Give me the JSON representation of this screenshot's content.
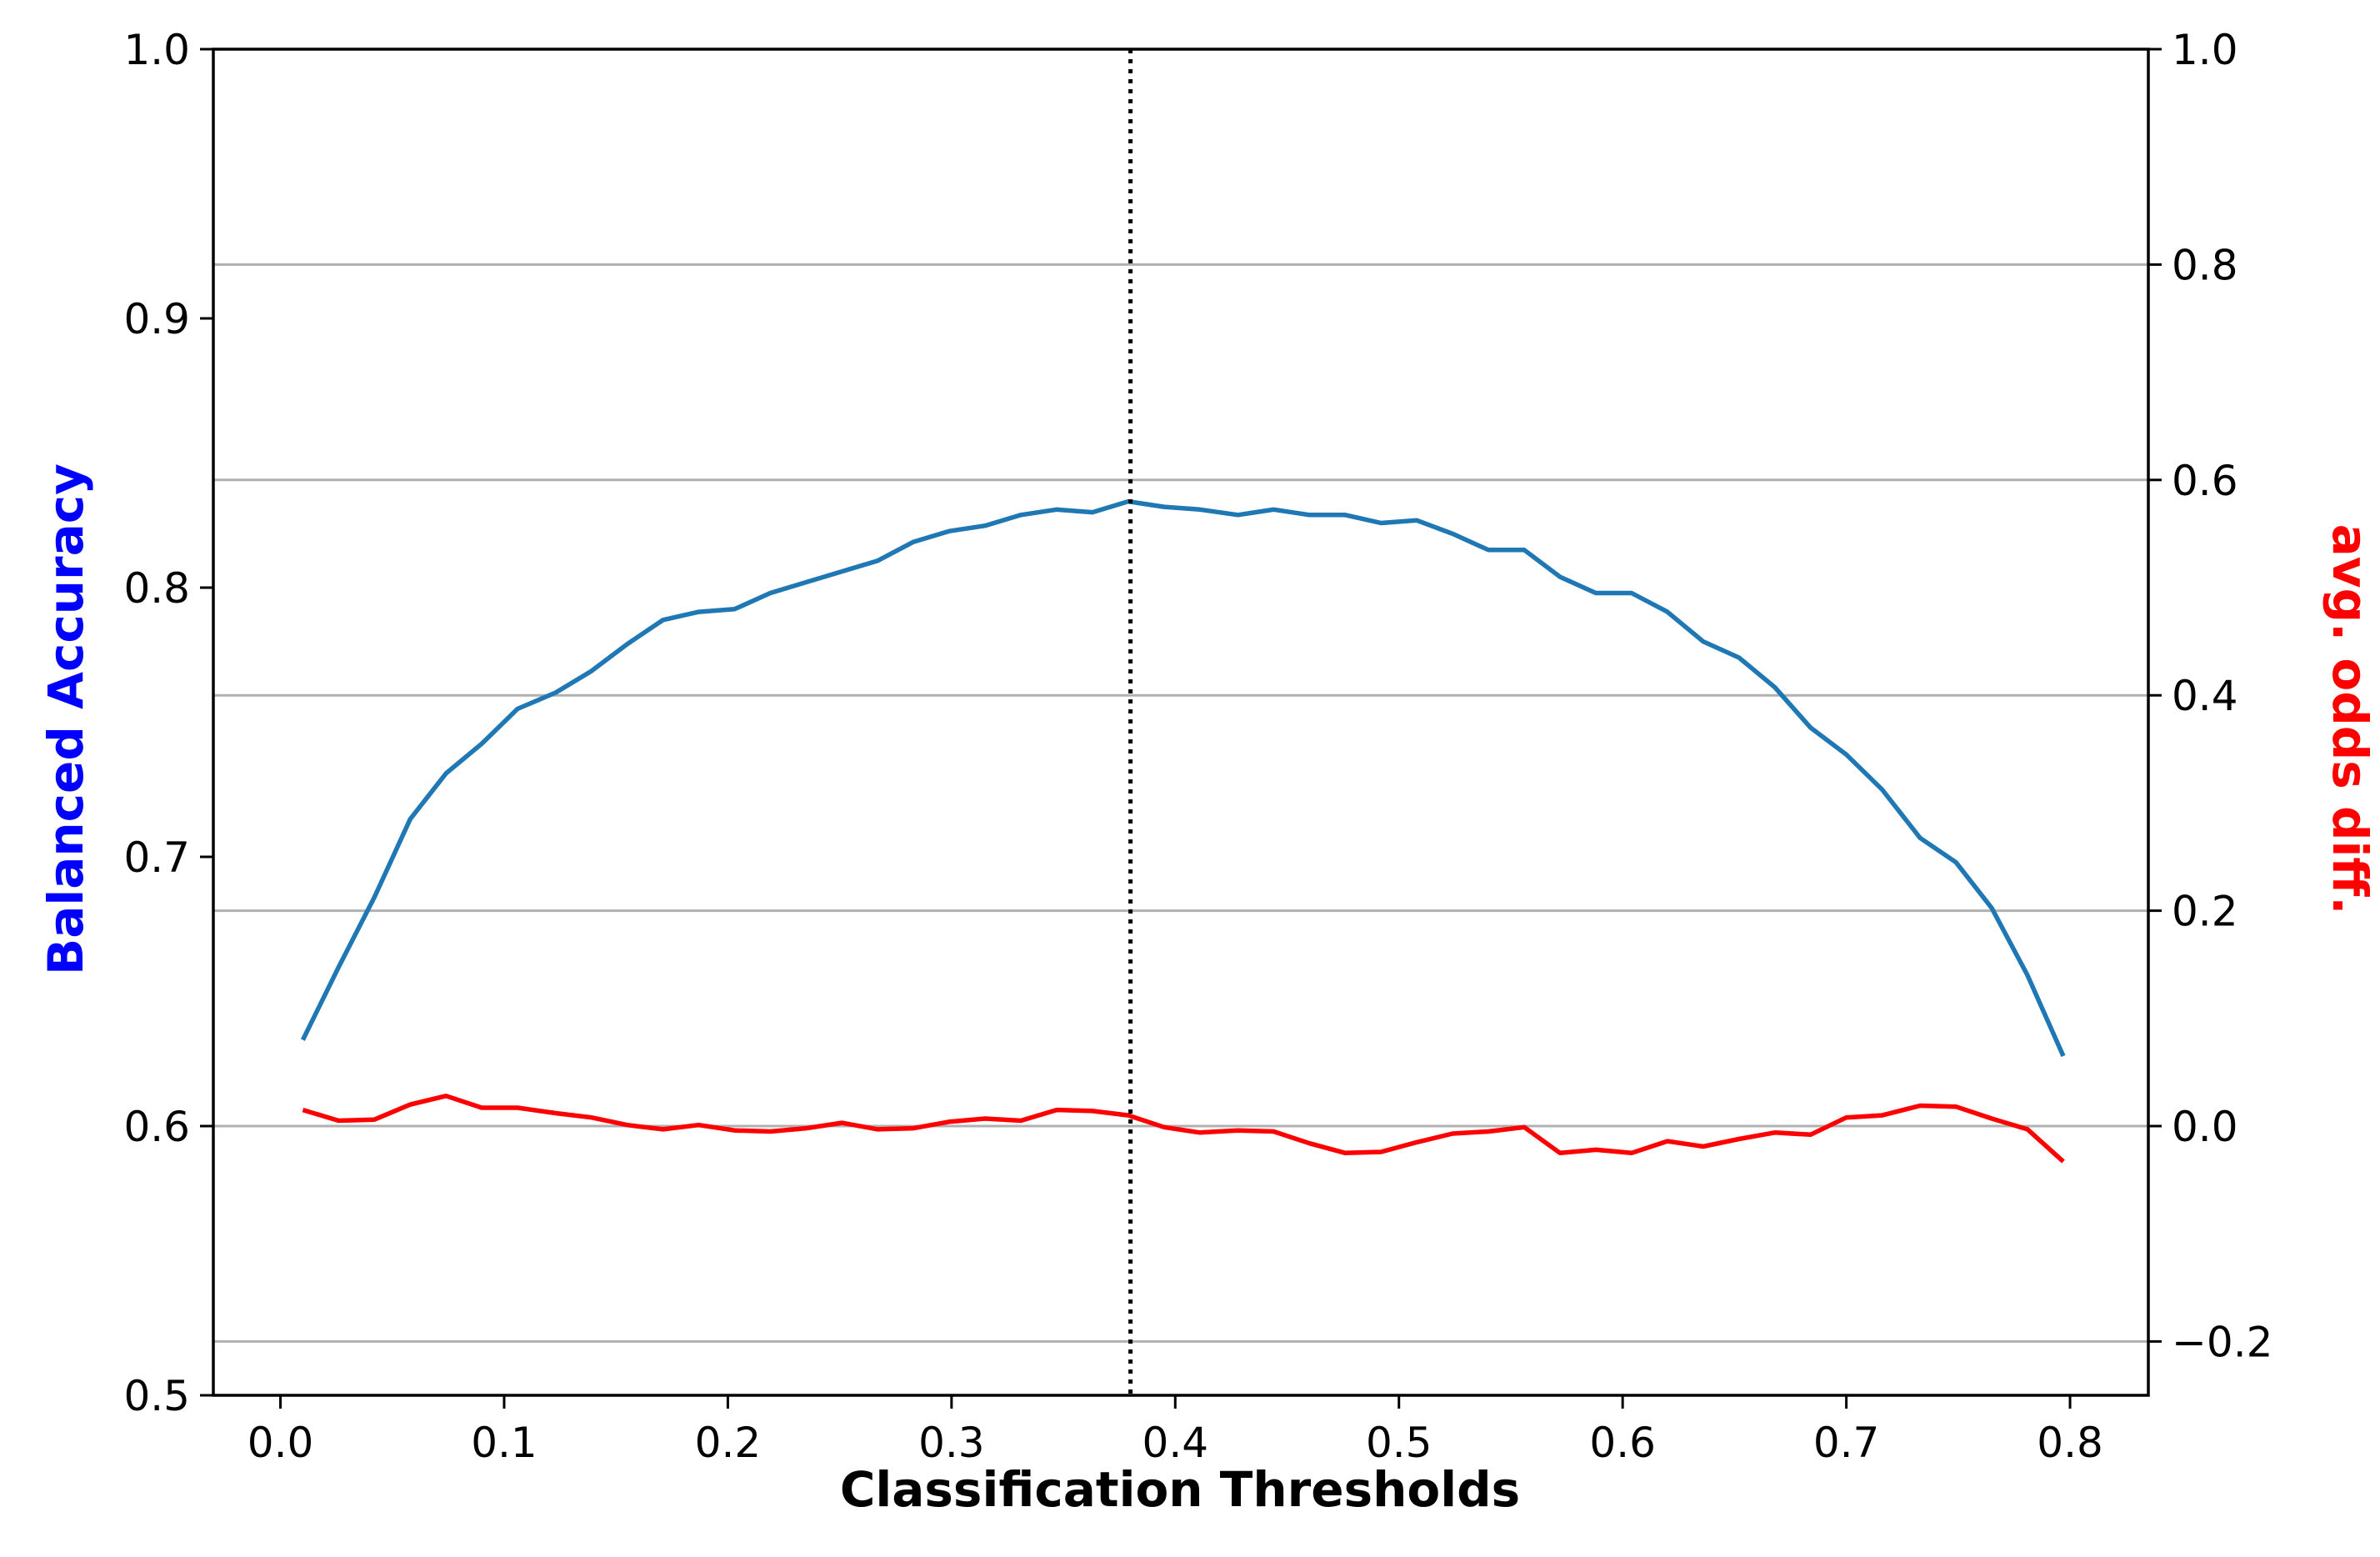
{
  "chart_data": {
    "type": "line",
    "xlabel": "Classification Thresholds",
    "ylabel_left": "Balanced Accuracy",
    "ylabel_right": "avg. odds diff.",
    "colors": {
      "left_label": "#0000ff",
      "right_label": "#ff0000",
      "accuracy_line": "#1f77b4",
      "odds_line": "#ff0000",
      "grid": "#b0b0b0",
      "threshold_line": "#000000"
    },
    "xlim": [
      -0.03,
      0.835
    ],
    "ylim_left": [
      0.5,
      1.0
    ],
    "ylim_right": [
      -0.25,
      1.0
    ],
    "x_ticks": [
      "0.0",
      "0.1",
      "0.2",
      "0.3",
      "0.4",
      "0.5",
      "0.6",
      "0.7",
      "0.8"
    ],
    "y_left_ticks": [
      "0.5",
      "0.6",
      "0.7",
      "0.8",
      "0.9",
      "1.0"
    ],
    "y_right_ticks": [
      "−0.2",
      "0.0",
      "0.2",
      "0.4",
      "0.6",
      "0.8",
      "1.0"
    ],
    "grid": "horizontal, at right-axis ticks",
    "best_threshold": 0.38,
    "x": [
      0.01,
      0.026,
      0.042,
      0.058,
      0.074,
      0.09,
      0.106,
      0.123,
      0.139,
      0.155,
      0.171,
      0.187,
      0.203,
      0.219,
      0.235,
      0.251,
      0.267,
      0.283,
      0.299,
      0.315,
      0.331,
      0.347,
      0.363,
      0.379,
      0.395,
      0.411,
      0.428,
      0.444,
      0.46,
      0.476,
      0.492,
      0.508,
      0.524,
      0.54,
      0.556,
      0.572,
      0.588,
      0.604,
      0.62,
      0.636,
      0.652,
      0.668,
      0.684,
      0.7,
      0.716,
      0.733,
      0.749,
      0.765,
      0.781,
      0.797
    ],
    "series": [
      {
        "axis": "left",
        "values": [
          0.632,
          0.659,
          0.685,
          0.714,
          0.731,
          0.742,
          0.755,
          0.761,
          0.769,
          0.779,
          0.788,
          0.791,
          0.792,
          0.798,
          0.802,
          0.806,
          0.81,
          0.817,
          0.821,
          0.823,
          0.827,
          0.829,
          0.828,
          0.832,
          0.83,
          0.829,
          0.827,
          0.829,
          0.827,
          0.827,
          0.824,
          0.825,
          0.82,
          0.814,
          0.814,
          0.804,
          0.798,
          0.798,
          0.791,
          0.78,
          0.774,
          0.763,
          0.748,
          0.738,
          0.725,
          0.707,
          0.698,
          0.681,
          0.656,
          0.626
        ]
      },
      {
        "axis": "right",
        "values": [
          0.015,
          0.005,
          0.006,
          0.02,
          0.028,
          0.017,
          0.017,
          0.012,
          0.008,
          0.001,
          -0.003,
          0.001,
          -0.004,
          -0.005,
          -0.002,
          0.003,
          -0.003,
          -0.002,
          0.004,
          0.007,
          0.005,
          0.015,
          0.014,
          0.01,
          -0.001,
          -0.006,
          -0.004,
          -0.005,
          -0.016,
          -0.025,
          -0.024,
          -0.015,
          -0.007,
          -0.005,
          -0.001,
          -0.025,
          -0.022,
          -0.025,
          -0.014,
          -0.019,
          -0.012,
          -0.006,
          -0.008,
          0.008,
          0.01,
          0.019,
          0.018,
          0.007,
          -0.003,
          -0.033
        ]
      }
    ]
  }
}
